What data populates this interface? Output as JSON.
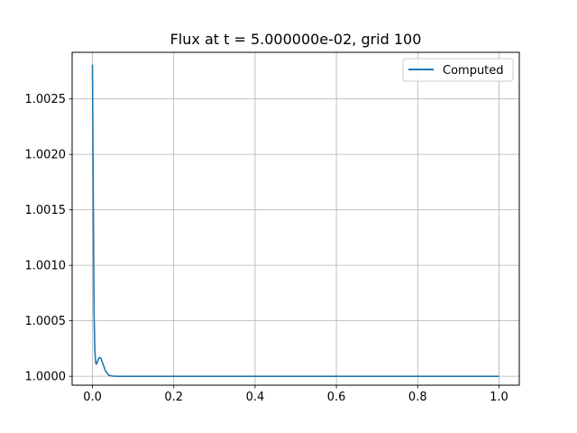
{
  "chart_data": {
    "type": "line",
    "title": "Flux at t = 5.000000e-02, grid 100",
    "xlabel": "",
    "ylabel": "",
    "xlim": [
      -0.05,
      1.05
    ],
    "ylim": [
      0.99992,
      1.00292
    ],
    "x_ticks": [
      0.0,
      0.2,
      0.4,
      0.6,
      0.8,
      1.0
    ],
    "x_tick_labels": [
      "0.0",
      "0.2",
      "0.4",
      "0.6",
      "0.8",
      "1.0"
    ],
    "y_ticks": [
      1.0,
      1.0005,
      1.001,
      1.0015,
      1.002,
      1.0025
    ],
    "y_tick_labels": [
      "1.0000",
      "1.0005",
      "1.0010",
      "1.0015",
      "1.0020",
      "1.0025"
    ],
    "grid": true,
    "legend": {
      "position": "top-right",
      "entries": [
        "Computed"
      ]
    },
    "series": [
      {
        "name": "Computed",
        "color": "#1f77b4",
        "x": [
          0.0,
          0.002,
          0.004,
          0.006,
          0.008,
          0.01,
          0.012,
          0.015,
          0.018,
          0.021,
          0.024,
          0.028,
          0.032,
          0.036,
          0.04,
          0.045,
          0.05,
          0.055,
          0.06,
          0.07,
          0.08,
          0.1,
          0.15,
          0.2,
          0.3,
          0.4,
          0.5,
          0.6,
          0.7,
          0.8,
          0.9,
          1.0
        ],
        "y": [
          1.00281,
          1.0016,
          1.00055,
          1.00022,
          1.00012,
          1.00011,
          1.00013,
          1.00016,
          1.00017,
          1.00016,
          1.00013,
          1.00009,
          1.00005,
          1.00003,
          1.00001,
          1.000005,
          1.000002,
          1.000001,
          1.0,
          1.0,
          1.0,
          1.0,
          1.0,
          1.0,
          1.0,
          1.0,
          1.0,
          1.0,
          1.0,
          1.0,
          1.0,
          1.0
        ]
      }
    ]
  }
}
